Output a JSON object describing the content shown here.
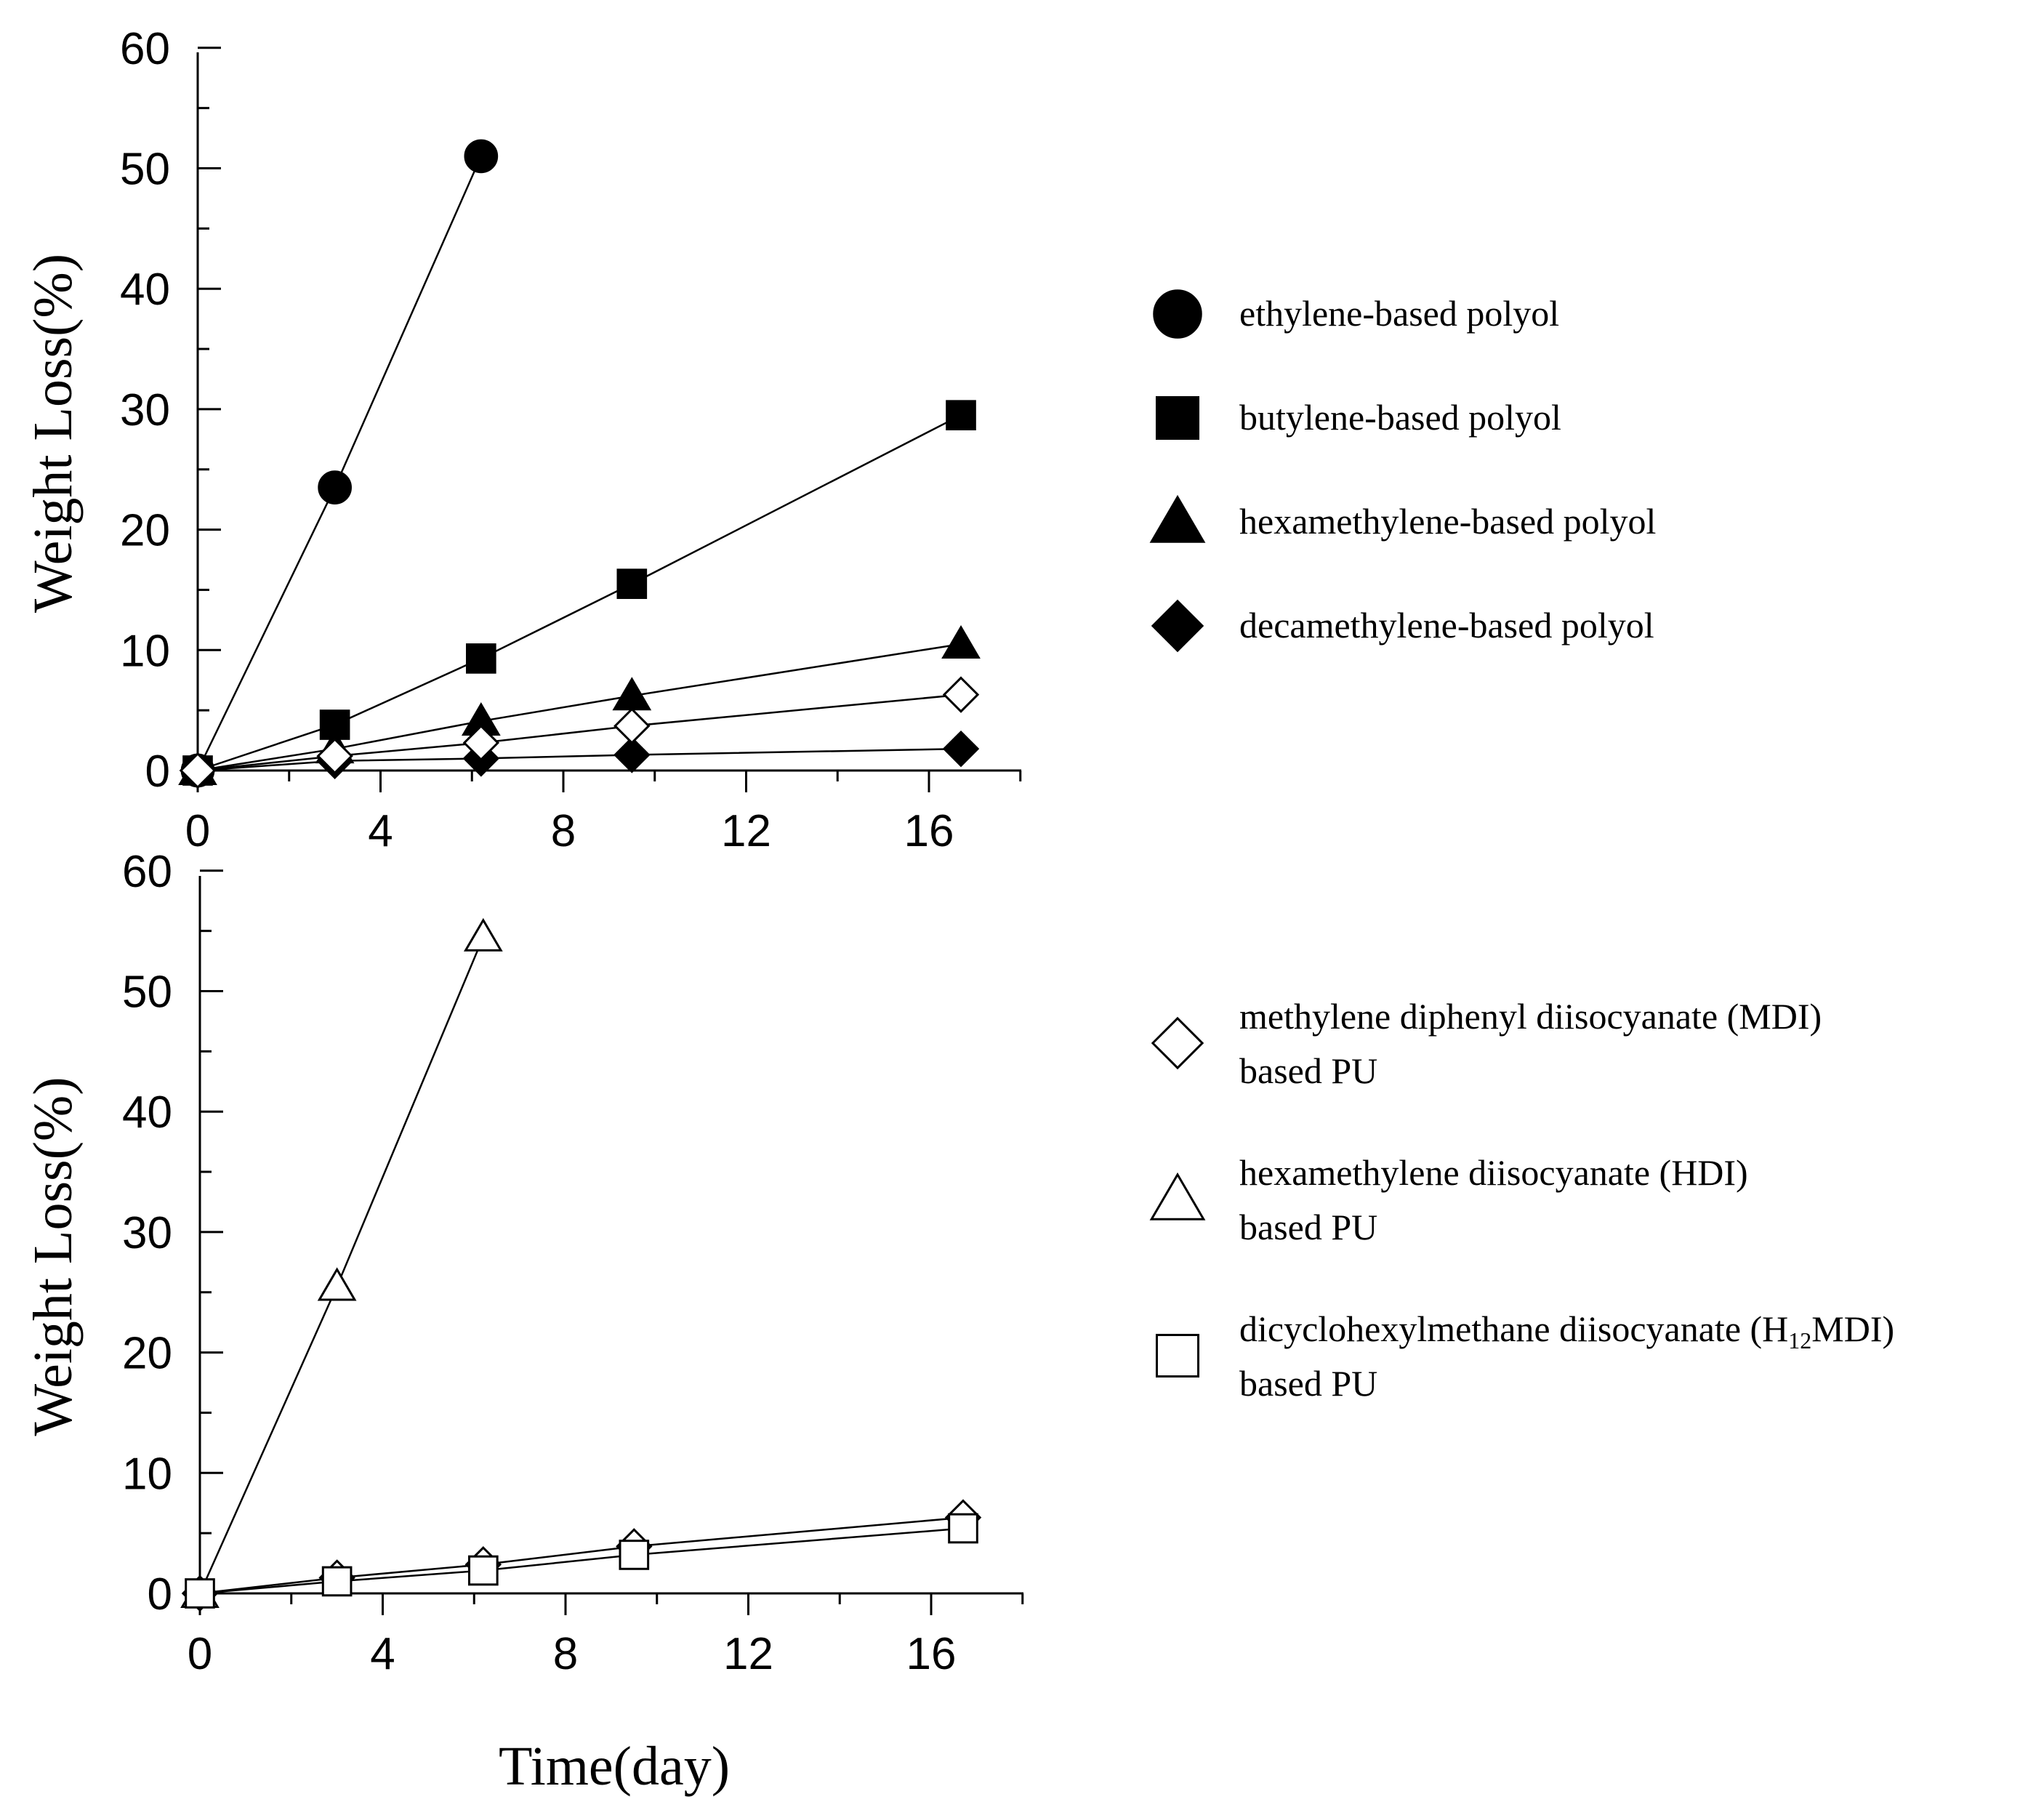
{
  "chart_data": [
    {
      "type": "line",
      "ylabel": "Weight Loss(%)",
      "xlabel": "",
      "xlim": [
        0,
        18
      ],
      "ylim": [
        0,
        60
      ],
      "xticks": [
        0,
        4,
        8,
        12,
        16
      ],
      "yticks": [
        0,
        10,
        20,
        30,
        40,
        50,
        60
      ],
      "legend_position": "right",
      "series": [
        {
          "name": "ethylene-based polyol",
          "marker": "circle-filled",
          "points": [
            [
              0,
              0
            ],
            [
              3,
              23.5
            ],
            [
              6.2,
              51
            ]
          ]
        },
        {
          "name": "butylene-based polyol",
          "marker": "square-filled",
          "points": [
            [
              0,
              0
            ],
            [
              3,
              3.8
            ],
            [
              6.2,
              9.3
            ],
            [
              9.5,
              15.5
            ],
            [
              16.7,
              29.5
            ]
          ]
        },
        {
          "name": "hexamethylene-based polyol",
          "marker": "triangle-filled",
          "points": [
            [
              0,
              0
            ],
            [
              3,
              1.8
            ],
            [
              6.2,
              4.1
            ],
            [
              9.5,
              6.2
            ],
            [
              16.7,
              10.5
            ]
          ]
        },
        {
          "name": "decamethylene-based polyol",
          "marker": "diamond-filled",
          "points": [
            [
              0,
              0
            ],
            [
              3,
              0.8
            ],
            [
              6.2,
              1.0
            ],
            [
              9.5,
              1.3
            ],
            [
              16.7,
              1.8
            ]
          ]
        },
        {
          "name": "",
          "marker": "diamond-open",
          "points": [
            [
              0,
              0
            ],
            [
              3,
              1.2
            ],
            [
              6.2,
              2.3
            ],
            [
              9.5,
              3.7
            ],
            [
              16.7,
              6.3
            ]
          ]
        }
      ]
    },
    {
      "type": "line",
      "ylabel": "Weight Loss(%)",
      "xlabel": "Time(day)",
      "xlim": [
        0,
        18
      ],
      "ylim": [
        0,
        60
      ],
      "xticks": [
        0,
        4,
        8,
        12,
        16
      ],
      "yticks": [
        0,
        10,
        20,
        30,
        40,
        50,
        60
      ],
      "legend_position": "right",
      "series": [
        {
          "name": "methylene diphenyl diisocyanate (MDI)",
          "name_line2": "based PU",
          "marker": "diamond-open",
          "points": [
            [
              0,
              0
            ],
            [
              3,
              1.3
            ],
            [
              6.2,
              2.4
            ],
            [
              9.5,
              3.9
            ],
            [
              16.7,
              6.3
            ]
          ]
        },
        {
          "name": "hexamethylene diisocyanate (HDI)",
          "name_line2": "based PU",
          "marker": "triangle-open",
          "points": [
            [
              0,
              0
            ],
            [
              3,
              25.5
            ],
            [
              6.2,
              54.5
            ]
          ]
        },
        {
          "name": "dicyclohexylmethane diisocyanate (H",
          "name_sub": "12",
          "name_tail": "MDI)",
          "name_line2": "based PU",
          "marker": "square-open",
          "points": [
            [
              0,
              0
            ],
            [
              3,
              1.0
            ],
            [
              6.2,
              1.9
            ],
            [
              9.5,
              3.2
            ],
            [
              16.7,
              5.4
            ]
          ]
        }
      ]
    }
  ]
}
